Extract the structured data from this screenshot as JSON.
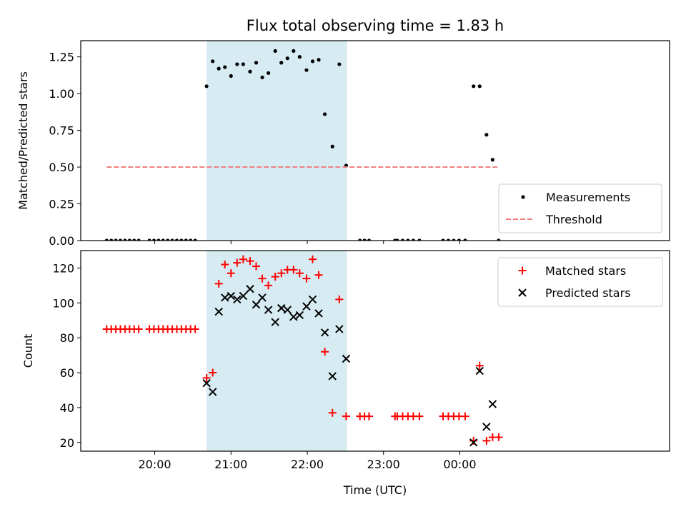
{
  "chart_data": {
    "title": "Flux total observing time = 1.83 h",
    "xlabel": "Time (UTC)",
    "x_tick_labels": [
      "20:00",
      "21:00",
      "22:00",
      "23:00",
      "00:00"
    ],
    "x_tick_values": [
      20,
      21,
      22,
      23,
      24
    ],
    "xlim": [
      19.03,
      26.75
    ],
    "highlight": {
      "x_start": 20.68,
      "x_end": 22.52,
      "color": "#add8e6"
    },
    "panels": [
      {
        "type": "scatter",
        "ylabel": "Matched/Predicted stars",
        "ylim": [
          0,
          1.36
        ],
        "y_tick_labels": [
          "0.00",
          "0.25",
          "0.50",
          "0.75",
          "1.00",
          "1.25"
        ],
        "y_tick_values": [
          0,
          0.25,
          0.5,
          0.75,
          1.0,
          1.25
        ],
        "legend_position": "lower right",
        "series": [
          {
            "name": "Measurements",
            "marker": "dot",
            "color": "#000000",
            "points": [
              [
                19.37,
                0
              ],
              [
                19.43,
                0
              ],
              [
                19.49,
                0
              ],
              [
                19.55,
                0
              ],
              [
                19.61,
                0
              ],
              [
                19.67,
                0
              ],
              [
                19.73,
                0
              ],
              [
                19.79,
                0
              ],
              [
                19.93,
                0
              ],
              [
                19.99,
                0
              ],
              [
                20.05,
                0
              ],
              [
                20.11,
                0
              ],
              [
                20.17,
                0
              ],
              [
                20.23,
                0
              ],
              [
                20.29,
                0
              ],
              [
                20.35,
                0
              ],
              [
                20.41,
                0
              ],
              [
                20.47,
                0
              ],
              [
                20.53,
                0
              ],
              [
                20.68,
                1.05
              ],
              [
                20.76,
                1.22
              ],
              [
                20.84,
                1.17
              ],
              [
                20.92,
                1.18
              ],
              [
                21.0,
                1.12
              ],
              [
                21.08,
                1.2
              ],
              [
                21.16,
                1.2
              ],
              [
                21.25,
                1.15
              ],
              [
                21.33,
                1.21
              ],
              [
                21.41,
                1.11
              ],
              [
                21.49,
                1.14
              ],
              [
                21.58,
                1.29
              ],
              [
                21.66,
                1.21
              ],
              [
                21.74,
                1.24
              ],
              [
                21.82,
                1.29
              ],
              [
                21.9,
                1.25
              ],
              [
                21.99,
                1.16
              ],
              [
                22.07,
                1.22
              ],
              [
                22.15,
                1.23
              ],
              [
                22.23,
                0.86
              ],
              [
                22.33,
                0.64
              ],
              [
                22.42,
                1.2
              ],
              [
                22.51,
                0.51
              ],
              [
                22.69,
                0
              ],
              [
                22.75,
                0
              ],
              [
                22.81,
                0
              ],
              [
                23.15,
                0
              ],
              [
                23.18,
                0
              ],
              [
                23.25,
                0
              ],
              [
                23.32,
                0
              ],
              [
                23.39,
                0
              ],
              [
                23.47,
                0
              ],
              [
                23.78,
                0
              ],
              [
                23.85,
                0
              ],
              [
                23.92,
                0
              ],
              [
                23.99,
                0
              ],
              [
                24.07,
                0
              ],
              [
                24.18,
                1.05
              ],
              [
                24.26,
                1.05
              ],
              [
                24.35,
                0.72
              ],
              [
                24.43,
                0.55
              ],
              [
                24.51,
                0
              ]
            ]
          },
          {
            "name": "Threshold",
            "marker": "dashed-line",
            "color": "#f08080",
            "points": [
              [
                19.37,
                0.5
              ],
              [
                24.51,
                0.5
              ]
            ]
          }
        ]
      },
      {
        "type": "scatter",
        "ylabel": "Count",
        "ylim": [
          15,
          130
        ],
        "y_tick_labels": [
          "20",
          "40",
          "60",
          "80",
          "100",
          "120"
        ],
        "y_tick_values": [
          20,
          40,
          60,
          80,
          100,
          120
        ],
        "legend_position": "upper right",
        "series": [
          {
            "name": "Matched stars",
            "marker": "plus",
            "color": "#ff0000",
            "points": [
              [
                19.37,
                85
              ],
              [
                19.43,
                85
              ],
              [
                19.49,
                85
              ],
              [
                19.55,
                85
              ],
              [
                19.61,
                85
              ],
              [
                19.67,
                85
              ],
              [
                19.73,
                85
              ],
              [
                19.79,
                85
              ],
              [
                19.93,
                85
              ],
              [
                19.99,
                85
              ],
              [
                20.05,
                85
              ],
              [
                20.11,
                85
              ],
              [
                20.17,
                85
              ],
              [
                20.23,
                85
              ],
              [
                20.29,
                85
              ],
              [
                20.35,
                85
              ],
              [
                20.41,
                85
              ],
              [
                20.47,
                85
              ],
              [
                20.53,
                85
              ],
              [
                20.68,
                57
              ],
              [
                20.76,
                60
              ],
              [
                20.84,
                111
              ],
              [
                20.92,
                122
              ],
              [
                21.0,
                117
              ],
              [
                21.08,
                123
              ],
              [
                21.16,
                125
              ],
              [
                21.25,
                124
              ],
              [
                21.33,
                121
              ],
              [
                21.41,
                114
              ],
              [
                21.49,
                110
              ],
              [
                21.58,
                115
              ],
              [
                21.66,
                117
              ],
              [
                21.74,
                119
              ],
              [
                21.82,
                119
              ],
              [
                21.9,
                117
              ],
              [
                21.99,
                114
              ],
              [
                22.07,
                125
              ],
              [
                22.15,
                116
              ],
              [
                22.23,
                72
              ],
              [
                22.33,
                37
              ],
              [
                22.42,
                102
              ],
              [
                22.51,
                35
              ],
              [
                22.69,
                35
              ],
              [
                22.75,
                35
              ],
              [
                22.81,
                35
              ],
              [
                23.15,
                35
              ],
              [
                23.18,
                35
              ],
              [
                23.25,
                35
              ],
              [
                23.32,
                35
              ],
              [
                23.39,
                35
              ],
              [
                23.47,
                35
              ],
              [
                23.78,
                35
              ],
              [
                23.85,
                35
              ],
              [
                23.92,
                35
              ],
              [
                23.99,
                35
              ],
              [
                24.07,
                35
              ],
              [
                24.18,
                21
              ],
              [
                24.26,
                64
              ],
              [
                24.35,
                21
              ],
              [
                24.43,
                23
              ],
              [
                24.51,
                23
              ]
            ]
          },
          {
            "name": "Predicted stars",
            "marker": "x",
            "color": "#000000",
            "points": [
              [
                20.68,
                54
              ],
              [
                20.76,
                49
              ],
              [
                20.84,
                95
              ],
              [
                20.92,
                103
              ],
              [
                21.0,
                104
              ],
              [
                21.08,
                102
              ],
              [
                21.16,
                104
              ],
              [
                21.25,
                108
              ],
              [
                21.33,
                99
              ],
              [
                21.41,
                103
              ],
              [
                21.49,
                96
              ],
              [
                21.58,
                89
              ],
              [
                21.66,
                97
              ],
              [
                21.74,
                96
              ],
              [
                21.82,
                92
              ],
              [
                21.9,
                93
              ],
              [
                21.99,
                98
              ],
              [
                22.07,
                102
              ],
              [
                22.15,
                94
              ],
              [
                22.23,
                83
              ],
              [
                22.33,
                58
              ],
              [
                22.42,
                85
              ],
              [
                22.51,
                68
              ],
              [
                24.18,
                20
              ],
              [
                24.26,
                61
              ],
              [
                24.35,
                29
              ],
              [
                24.43,
                42
              ]
            ]
          }
        ]
      }
    ]
  }
}
